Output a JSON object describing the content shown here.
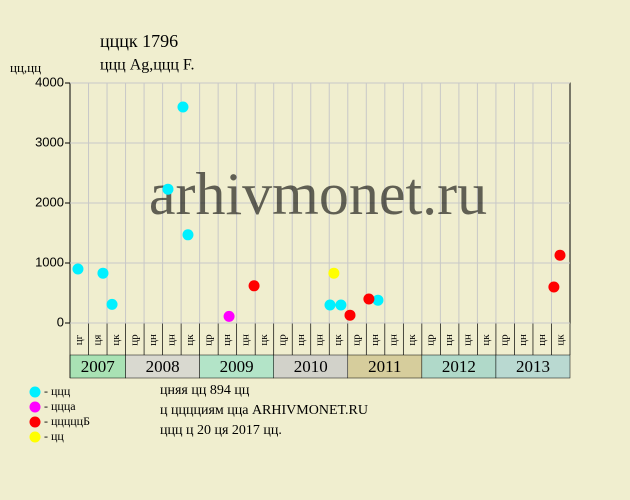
{
  "chart_data": {
    "type": "scatter",
    "title": "цццк 1796",
    "subtitle": "ццц Ag,ццц F.",
    "y_label": "цц,цц",
    "watermark": "arhivmonet.ru",
    "ylim": [
      0,
      4000
    ],
    "yticks": [
      0,
      1000,
      2000,
      3000,
      4000
    ],
    "xlim": [
      0,
      27
    ],
    "grid": true,
    "quarters": [
      "цг",
      "ця",
      "цк",
      "цр",
      "цн",
      "цн",
      "цк",
      "цр",
      "цн",
      "цн",
      "цк",
      "цр",
      "цн",
      "цн",
      "цк",
      "цр",
      "цн",
      "цн",
      "цк",
      "цр",
      "цн",
      "цн",
      "цк",
      "цр",
      "цн",
      "цн",
      "цк"
    ],
    "years": [
      {
        "label": "2007",
        "start": 0,
        "end": 3,
        "color": "#a9e2b4"
      },
      {
        "label": "2008",
        "start": 3,
        "end": 7,
        "color": "#d9d9d0"
      },
      {
        "label": "2009",
        "start": 7,
        "end": 11,
        "color": "#b3e4c8"
      },
      {
        "label": "2010",
        "start": 11,
        "end": 15,
        "color": "#d2d2ca"
      },
      {
        "label": "2011",
        "start": 15,
        "end": 19,
        "color": "#d6cd9c"
      },
      {
        "label": "2012",
        "start": 19,
        "end": 23,
        "color": "#b0d9c9"
      },
      {
        "label": "2013",
        "start": 23,
        "end": 27,
        "color": "#b9d9d1"
      }
    ],
    "series": [
      {
        "name": "- ццц",
        "color": "#00f0ff",
        "x": [
          0.43,
          1.78,
          2.27,
          5.29,
          6.1,
          6.37,
          14.04,
          14.63,
          16.63
        ],
        "values": [
          900,
          830,
          310,
          2230,
          3600,
          1470,
          300,
          300,
          380
        ]
      },
      {
        "name": "- ццца",
        "color": "#ff00ff",
        "x": [
          8.59
        ],
        "values": [
          110
        ]
      },
      {
        "name": "- цццццБ",
        "color": "#ff0000",
        "x": [
          9.94,
          15.12,
          16.14,
          26.13,
          26.46
        ],
        "values": [
          620,
          130,
          400,
          600,
          1130
        ]
      },
      {
        "name": "- цц",
        "color": "#ffff00",
        "x": [
          14.25
        ],
        "values": [
          830
        ]
      }
    ],
    "notes": [
      "цняя цц 894 цц",
      "ц цццциям цца ARHIVMONET.RU",
      "ццц ц 20 ця 2017 цц."
    ]
  }
}
